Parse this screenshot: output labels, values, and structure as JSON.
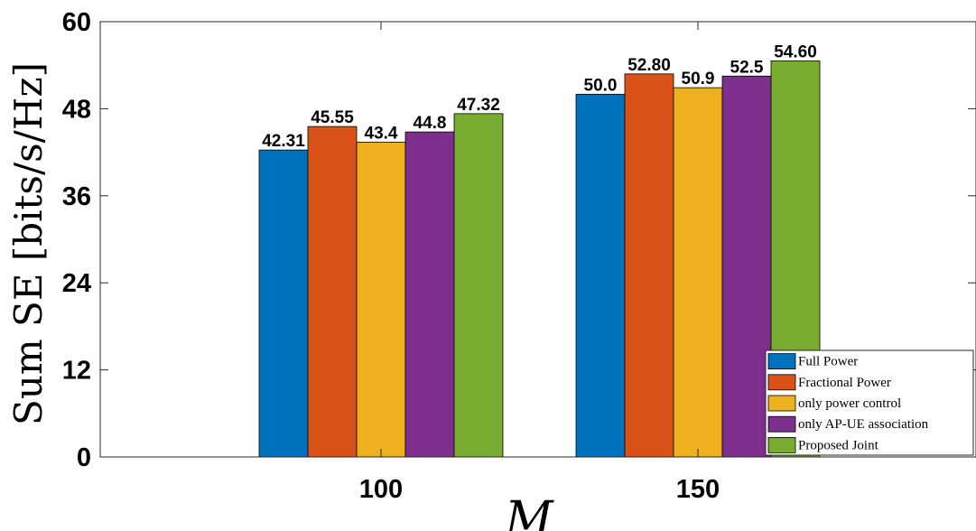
{
  "chart_data": {
    "type": "bar",
    "categories": [
      "100",
      "150"
    ],
    "series": [
      {
        "name": "Full Power",
        "color": "#0072BD",
        "values": [
          42.31,
          50.0
        ],
        "labels": [
          "42.31",
          "50.0"
        ]
      },
      {
        "name": "Fractional Power",
        "color": "#D95319",
        "values": [
          45.55,
          52.8
        ],
        "labels": [
          "45.55",
          "52.80"
        ]
      },
      {
        "name": "only power control",
        "color": "#EDB120",
        "values": [
          43.4,
          50.9
        ],
        "labels": [
          "43.4",
          "50.9"
        ]
      },
      {
        "name": "only AP-UE association",
        "color": "#7E2F8E",
        "values": [
          44.8,
          52.5
        ],
        "labels": [
          "44.8",
          "52.5"
        ]
      },
      {
        "name": "Proposed Joint",
        "color": "#77AC30",
        "values": [
          47.32,
          54.6
        ],
        "labels": [
          "47.32",
          "54.60"
        ]
      }
    ],
    "title": "",
    "xlabel": "M",
    "ylabel": "Sum SE [bits/s/Hz]",
    "ylim": [
      0,
      60
    ],
    "yticks": [
      "0",
      "12",
      "24",
      "36",
      "48",
      "60"
    ],
    "grid": false,
    "legend_position": "bottom-right"
  }
}
